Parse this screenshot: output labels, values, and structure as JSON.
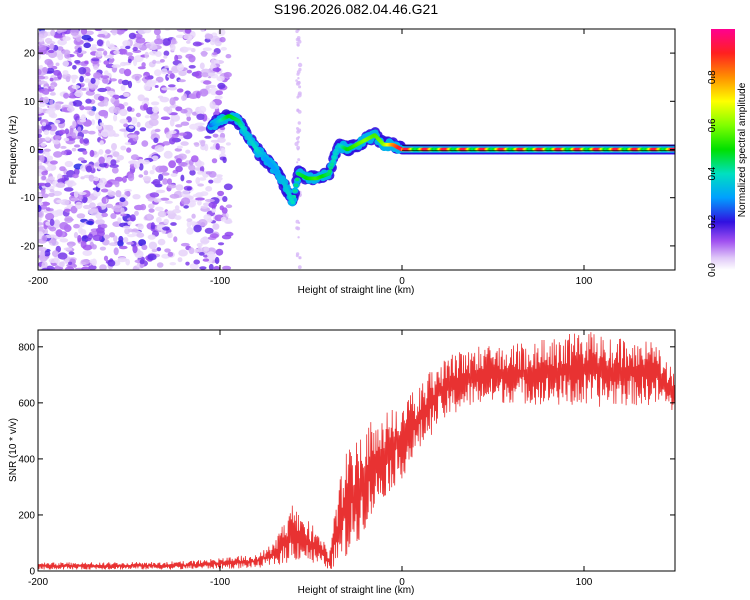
{
  "figure": {
    "title": "S196.2026.082.04.46.G21"
  },
  "chart_data": [
    {
      "type": "heatmap",
      "title": "S196.2026.082.04.46.G21",
      "xlabel": "Height of straight line (km)",
      "ylabel": "Frequency (Hz)",
      "xlim": [
        -200,
        150
      ],
      "ylim": [
        -25,
        25
      ],
      "xticks": [
        -200,
        -100,
        0,
        100
      ],
      "yticks": [
        -20,
        -10,
        0,
        10,
        20
      ],
      "colorbar": {
        "label": "Normalized spectral amplitude",
        "range": [
          0,
          1
        ],
        "ticks": [
          0.0,
          0.2,
          0.4,
          0.6,
          0.8
        ]
      },
      "ridge": {
        "x": [
          -105,
          -95,
          -90,
          -85,
          -80,
          -75,
          -70,
          -65,
          -60,
          -57,
          -52,
          -47,
          -40,
          -35,
          -30,
          -25,
          -20,
          -15,
          -10,
          -5,
          0,
          10,
          20,
          40,
          60,
          80,
          100,
          120,
          150
        ],
        "y": [
          5,
          7,
          6,
          3,
          0,
          -2,
          -4,
          -7,
          -11,
          -5,
          -6,
          -6,
          -5,
          1,
          0,
          1,
          2,
          3,
          1,
          1,
          0,
          0,
          0,
          0,
          0,
          0,
          0,
          0,
          0
        ],
        "amplitude": [
          0.25,
          0.5,
          0.45,
          0.35,
          0.4,
          0.3,
          0.3,
          0.35,
          0.4,
          0.45,
          0.5,
          0.55,
          0.45,
          0.35,
          0.5,
          0.55,
          0.6,
          0.55,
          0.6,
          0.8,
          0.95,
          0.95,
          0.95,
          0.95,
          0.95,
          0.95,
          0.95,
          0.95,
          0.95
        ]
      }
    },
    {
      "type": "line",
      "xlabel": "Height of straight line (km)",
      "ylabel": "SNR (10 * v/v)",
      "xlim": [
        -200,
        150
      ],
      "ylim": [
        0,
        860
      ],
      "xticks": [
        -200,
        -100,
        0,
        100
      ],
      "yticks": [
        0,
        200,
        400,
        600,
        800
      ],
      "series": [
        {
          "name": "SNR",
          "color": "#e83232",
          "envelope_x": [
            -200,
            -120,
            -80,
            -70,
            -60,
            -55,
            -45,
            -40,
            -35,
            -30,
            -20,
            -10,
            0,
            10,
            20,
            30,
            40,
            60,
            80,
            100,
            120,
            140,
            150
          ],
          "envelope_lo": [
            5,
            5,
            10,
            20,
            30,
            40,
            10,
            5,
            10,
            40,
            150,
            260,
            330,
            430,
            520,
            560,
            590,
            600,
            590,
            580,
            590,
            590,
            560
          ],
          "envelope_hi": [
            30,
            35,
            60,
            100,
            240,
            200,
            140,
            60,
            300,
            440,
            530,
            560,
            600,
            670,
            750,
            790,
            800,
            810,
            830,
            860,
            830,
            820,
            700
          ]
        }
      ]
    }
  ]
}
